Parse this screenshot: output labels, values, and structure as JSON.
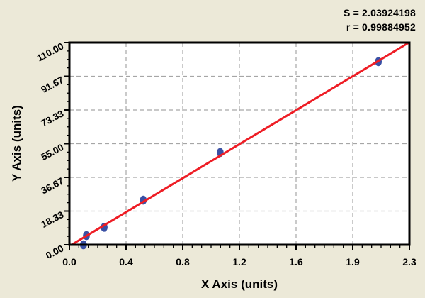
{
  "stats": {
    "s_label": "S = 2.03924198",
    "r_label": "r = 0.99884952"
  },
  "chart_data": {
    "type": "scatter",
    "title": "",
    "xlabel": "X Axis (units)",
    "ylabel": "Y Axis (units)",
    "xlim": [
      0,
      2.3
    ],
    "ylim": [
      0,
      110
    ],
    "x_tick_labels": [
      "0.0",
      "0.4",
      "0.8",
      "1.2",
      "1.6",
      "1.9",
      "2.3"
    ],
    "y_tick_labels": [
      "0.00",
      "18.33",
      "36.67",
      "55.00",
      "73.33",
      "91.67",
      "110.00"
    ],
    "x_minor_per_major": 5,
    "y_minor_per_major": 3,
    "grid": "dashed",
    "legend": "none",
    "points": [
      {
        "x": 0.095,
        "y": 0.0
      },
      {
        "x": 0.115,
        "y": 5.0
      },
      {
        "x": 0.235,
        "y": 9.5
      },
      {
        "x": 0.5,
        "y": 24.3
      },
      {
        "x": 1.02,
        "y": 50.2
      },
      {
        "x": 2.09,
        "y": 99.6
      }
    ],
    "fit_line": {
      "slope": 48.2,
      "intercept": -0.7
    },
    "fit_stats": {
      "S": 2.03924198,
      "r": 0.99884952
    },
    "colors": {
      "background": "#ECE9D8",
      "plot_bg": "#FFFFFF",
      "frame": "#000000",
      "grid": "#A6A6A6",
      "fit_line": "#EE1D25",
      "marker": "#3A50A5",
      "text": "#000000"
    }
  }
}
